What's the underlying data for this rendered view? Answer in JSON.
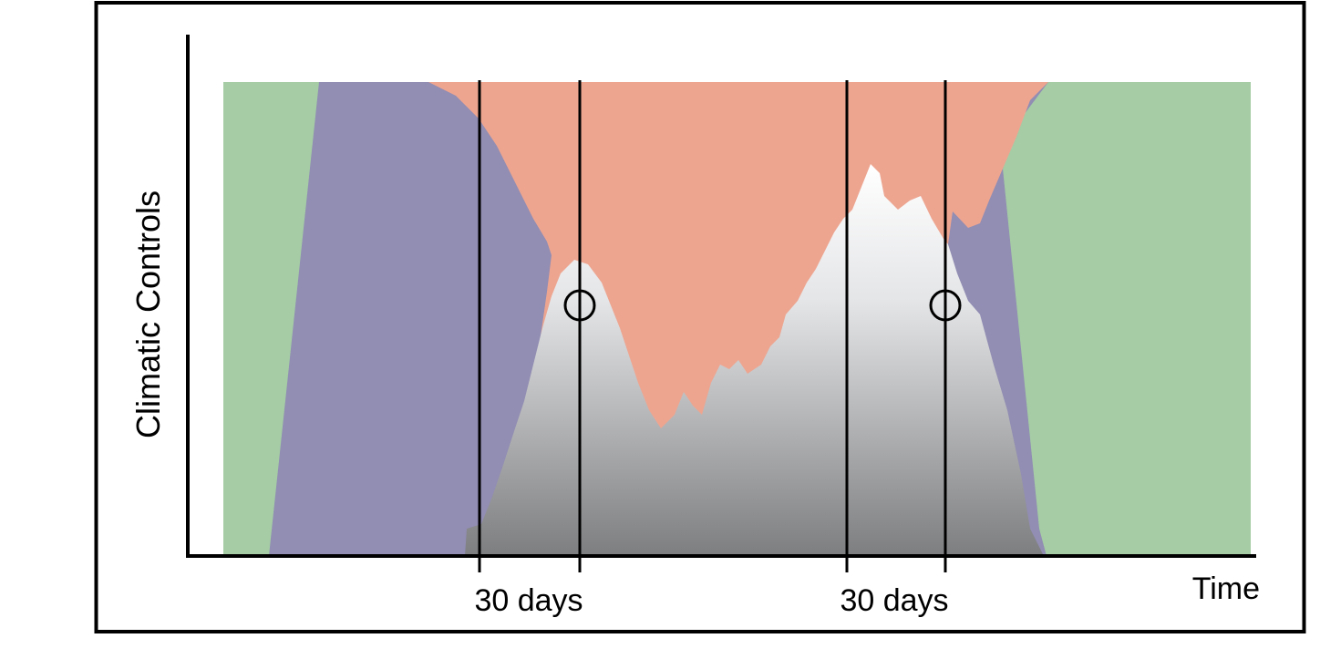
{
  "diagram": {
    "y_axis_label": "Climatic Controls",
    "x_axis_label": "Time",
    "window_labels": [
      "30 days",
      "30 days"
    ],
    "regions": [
      {
        "name": "green-region",
        "color": "#a5cca5"
      },
      {
        "name": "purple-region",
        "color": "#918db3"
      },
      {
        "name": "salmon-region",
        "color": "#eda590"
      },
      {
        "name": "gradient-region",
        "color_top": "#ffffff",
        "color_bottom": "#7d7e80"
      }
    ],
    "markers": [
      "circle-marker",
      "circle-marker"
    ]
  }
}
